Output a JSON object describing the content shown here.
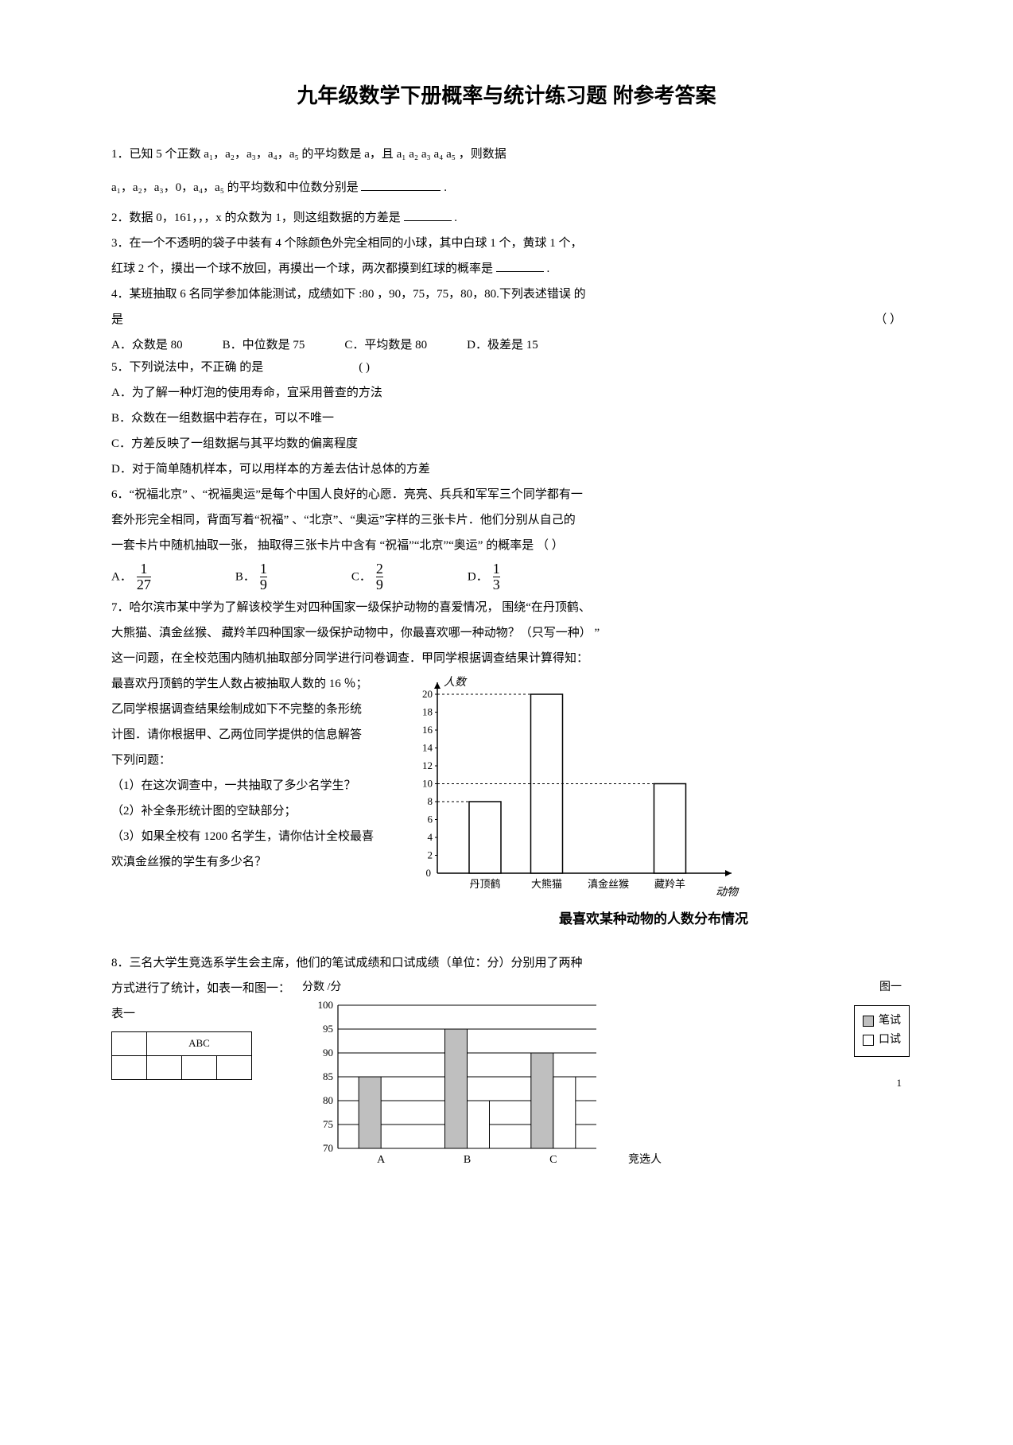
{
  "title": "九年级数学下册概率与统计练习题  附参考答案",
  "q1a": "1．已知 5 个正数 a₁，a₂，a₃，a₄，a₅ 的平均数是  a，且 a₁    a₂   a₃   a₄   a₅ ，则数据",
  "q1b": "a₁，a₂，a₃，0，a₄，a₅ 的平均数和中位数分别是",
  "q2": "2．数据 0，161，，，x 的众数为  1，则这组数据的方差是",
  "q3a": "3．在一个不透明的袋子中装有    4 个除颜色外完全相同的小球，其中白球     1 个，黄球 1 个，",
  "q3b": "红球 2 个，摸出一个球不放回，再摸出一个球，两次都摸到红球的概率是",
  "q4a": "4．某班抽取 6 名同学参加体能测试，成绩如下   :80 ，90，75，75，80，80.下列表述错误  的",
  "q4b": "是",
  "q4c": "（     ）",
  "q4opts": {
    "A": "A．众数是 80",
    "B": "B．中位数是 75",
    "C": "C．平均数是 80",
    "D": "D．极差是 15"
  },
  "q5a": "5．下列说法中，不正确  的是",
  "q5p": "(  )",
  "q5A": "A．为了解一种灯泡的使用寿命，宜采用普查的方法",
  "q5B": "B．众数在一组数据中若存在，可以不唯一",
  "q5C": "C．方差反映了一组数据与其平均数的偏离程度",
  "q5D": "D．对于简单随机样本，可以用样本的方差去估计总体的方差",
  "q6a": "6．“祝福北京” 、“祝福奥运”是每个中国人良好的心愿．亮亮、兵兵和军军三个同学都有一",
  "q6b": "套外形完全相同，背面写着“祝福”   、“北京”、“奥运”字样的三张卡片．他们分别从自己的",
  "q6c": "一套卡片中随机抽取一张，  抽取得三张卡片中含有  “祝福”“北京”“奥运” 的概率是 （   ）",
  "q6opts": [
    {
      "label": "A．",
      "n": "1",
      "d": "27"
    },
    {
      "label": "B．",
      "n": "1",
      "d": "9"
    },
    {
      "label": "C．",
      "n": "2",
      "d": "9"
    },
    {
      "label": "D．",
      "n": "1",
      "d": "3"
    }
  ],
  "q7a": "7．哈尔滨市某中学为了解该校学生对四种国家一级保护动物的喜爱情况，     围绕“在丹顶鹤、",
  "q7b": "大熊猫、滇金丝猴、  藏羚羊四种国家一级保护动物中，你最喜欢哪一种动物？（只写一种）     ”",
  "q7c": "这一问题，在全校范围内随机抽取部分同学进行问卷调查．甲同学根据调查结果计算得知：",
  "q7left": [
    "最喜欢丹顶鹤的学生人数占被抽取人数的     16 ％；",
    "乙同学根据调查结果绘制成如下不完整的条形统",
    "计图．请你根据甲、乙两位同学提供的信息解答",
    "下列问题：",
    "（1）在这次调查中，一共抽取了多少名学生？",
    "（2）补全条形统计图的空缺部分；",
    "（3）如果全校有 1200 名学生，请你估计全校最喜",
    "欢滇金丝猴的学生有多少名？"
  ],
  "chart7": {
    "ylabel": "人数",
    "xlabel": "动物名称",
    "caption": "最喜欢某种动物的人数分布情况",
    "ymax": 20,
    "ytick": 2,
    "yticks": [
      0,
      2,
      4,
      6,
      8,
      10,
      12,
      14,
      16,
      18,
      20
    ],
    "categories": [
      "丹顶鹤",
      "大熊猫",
      "滇金丝猴",
      "藏羚羊"
    ],
    "values": [
      8,
      20,
      null,
      10
    ],
    "bar_fill": "#ffffff",
    "bar_stroke": "#000000",
    "axis_color": "#000000",
    "grid_dash": "3,3"
  },
  "q8a": "8．三名大学生竞选系学生会主席，他们的笔试成绩和口试成绩（单位：分）分别用了两种",
  "q8b": "方式进行了统计，如表一和图一：",
  "q8_axis_label": "分数 /分",
  "q8_fig_label": "图一",
  "q8_table_label": "表一",
  "q8_table_header": "ABC",
  "chart8": {
    "yticks": [
      70,
      75,
      80,
      85,
      90,
      95,
      100
    ],
    "categories": [
      "A",
      "B",
      "C"
    ],
    "xlabel": "竞选人",
    "series": [
      {
        "name": "笔试",
        "fill": "#bfbfbf",
        "values": [
          85,
          95,
          90
        ]
      },
      {
        "name": "口试",
        "fill": "#ffffff",
        "values": [
          null,
          80,
          85
        ]
      }
    ],
    "grid_color": "#000000",
    "bar_stroke": "#000000"
  },
  "legend": {
    "s1": "笔试",
    "s2": "口试"
  },
  "pagenum": "1"
}
